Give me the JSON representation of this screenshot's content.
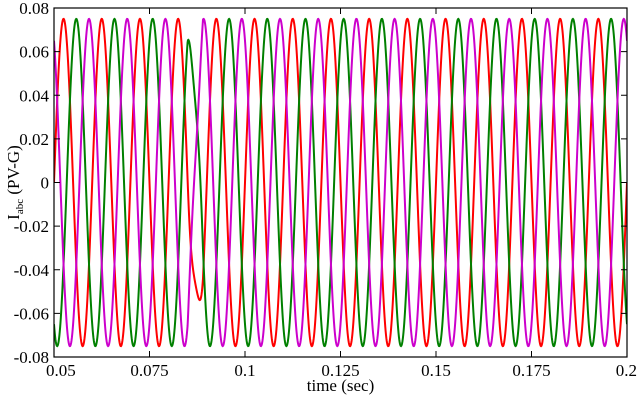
{
  "chart_data": {
    "type": "line",
    "title": "",
    "xlabel": "time (sec)",
    "ylabel": {
      "main": "I",
      "subscript": "abc",
      "suffix": " (PV-G)"
    },
    "xlim": [
      0.05,
      0.2
    ],
    "ylim": [
      -0.08,
      0.08
    ],
    "xticks": [
      0.05,
      0.075,
      0.1,
      0.125,
      0.15,
      0.175,
      0.2
    ],
    "xtick_labels": [
      "0.05",
      "0.075",
      "0.1",
      "0.125",
      "0.15",
      "0.175",
      "0.2"
    ],
    "yticks": [
      0.08,
      0.06,
      0.04,
      0.02,
      0,
      -0.02,
      -0.04,
      -0.06,
      -0.08
    ],
    "ytick_labels": [
      "0.08",
      "0.06",
      "0.04",
      "0.02",
      "0",
      "-0.02",
      "-0.04",
      "-0.06",
      "-0.08"
    ],
    "grid": false,
    "legend": "none",
    "waveform": {
      "amplitude": 0.075,
      "frequency_hz": 100,
      "disturbance_window_s": [
        0.085,
        0.089
      ]
    },
    "series": [
      {
        "color": "#ff0000",
        "phase_deg": 0
      },
      {
        "color": "#008000",
        "phase_deg": -120
      },
      {
        "color": "#cc00cc",
        "phase_deg": 120
      }
    ]
  }
}
